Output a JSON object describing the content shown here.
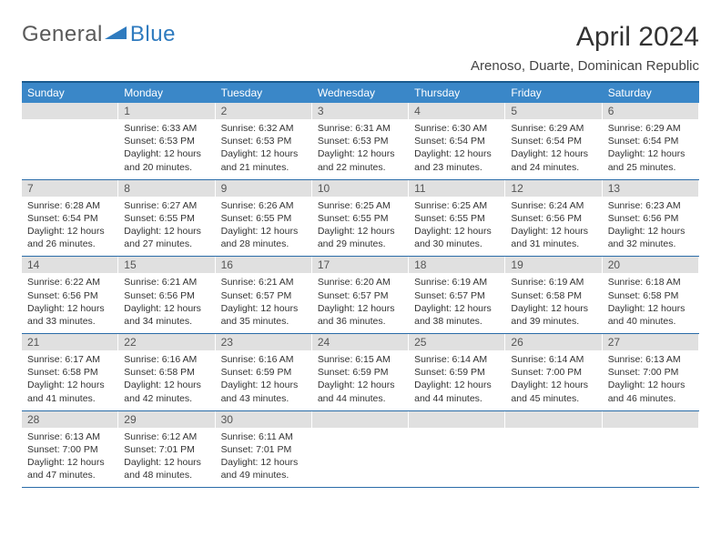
{
  "logo": {
    "text1": "General",
    "text2": "Blue",
    "accent_color": "#2f7bbf"
  },
  "title": "April 2024",
  "location": "Arenoso, Duarte, Dominican Republic",
  "header_bg": "#3a87c8",
  "border_color": "#1a5a8e",
  "row_border": "#2a6ca8",
  "daynum_bg": "#e0e0e0",
  "day_names": [
    "Sunday",
    "Monday",
    "Tuesday",
    "Wednesday",
    "Thursday",
    "Friday",
    "Saturday"
  ],
  "weeks": [
    [
      {
        "n": "",
        "sr": "",
        "ss": "",
        "dl": ""
      },
      {
        "n": "1",
        "sr": "6:33 AM",
        "ss": "6:53 PM",
        "dl": "12 hours and 20 minutes."
      },
      {
        "n": "2",
        "sr": "6:32 AM",
        "ss": "6:53 PM",
        "dl": "12 hours and 21 minutes."
      },
      {
        "n": "3",
        "sr": "6:31 AM",
        "ss": "6:53 PM",
        "dl": "12 hours and 22 minutes."
      },
      {
        "n": "4",
        "sr": "6:30 AM",
        "ss": "6:54 PM",
        "dl": "12 hours and 23 minutes."
      },
      {
        "n": "5",
        "sr": "6:29 AM",
        "ss": "6:54 PM",
        "dl": "12 hours and 24 minutes."
      },
      {
        "n": "6",
        "sr": "6:29 AM",
        "ss": "6:54 PM",
        "dl": "12 hours and 25 minutes."
      }
    ],
    [
      {
        "n": "7",
        "sr": "6:28 AM",
        "ss": "6:54 PM",
        "dl": "12 hours and 26 minutes."
      },
      {
        "n": "8",
        "sr": "6:27 AM",
        "ss": "6:55 PM",
        "dl": "12 hours and 27 minutes."
      },
      {
        "n": "9",
        "sr": "6:26 AM",
        "ss": "6:55 PM",
        "dl": "12 hours and 28 minutes."
      },
      {
        "n": "10",
        "sr": "6:25 AM",
        "ss": "6:55 PM",
        "dl": "12 hours and 29 minutes."
      },
      {
        "n": "11",
        "sr": "6:25 AM",
        "ss": "6:55 PM",
        "dl": "12 hours and 30 minutes."
      },
      {
        "n": "12",
        "sr": "6:24 AM",
        "ss": "6:56 PM",
        "dl": "12 hours and 31 minutes."
      },
      {
        "n": "13",
        "sr": "6:23 AM",
        "ss": "6:56 PM",
        "dl": "12 hours and 32 minutes."
      }
    ],
    [
      {
        "n": "14",
        "sr": "6:22 AM",
        "ss": "6:56 PM",
        "dl": "12 hours and 33 minutes."
      },
      {
        "n": "15",
        "sr": "6:21 AM",
        "ss": "6:56 PM",
        "dl": "12 hours and 34 minutes."
      },
      {
        "n": "16",
        "sr": "6:21 AM",
        "ss": "6:57 PM",
        "dl": "12 hours and 35 minutes."
      },
      {
        "n": "17",
        "sr": "6:20 AM",
        "ss": "6:57 PM",
        "dl": "12 hours and 36 minutes."
      },
      {
        "n": "18",
        "sr": "6:19 AM",
        "ss": "6:57 PM",
        "dl": "12 hours and 38 minutes."
      },
      {
        "n": "19",
        "sr": "6:19 AM",
        "ss": "6:58 PM",
        "dl": "12 hours and 39 minutes."
      },
      {
        "n": "20",
        "sr": "6:18 AM",
        "ss": "6:58 PM",
        "dl": "12 hours and 40 minutes."
      }
    ],
    [
      {
        "n": "21",
        "sr": "6:17 AM",
        "ss": "6:58 PM",
        "dl": "12 hours and 41 minutes."
      },
      {
        "n": "22",
        "sr": "6:16 AM",
        "ss": "6:58 PM",
        "dl": "12 hours and 42 minutes."
      },
      {
        "n": "23",
        "sr": "6:16 AM",
        "ss": "6:59 PM",
        "dl": "12 hours and 43 minutes."
      },
      {
        "n": "24",
        "sr": "6:15 AM",
        "ss": "6:59 PM",
        "dl": "12 hours and 44 minutes."
      },
      {
        "n": "25",
        "sr": "6:14 AM",
        "ss": "6:59 PM",
        "dl": "12 hours and 44 minutes."
      },
      {
        "n": "26",
        "sr": "6:14 AM",
        "ss": "7:00 PM",
        "dl": "12 hours and 45 minutes."
      },
      {
        "n": "27",
        "sr": "6:13 AM",
        "ss": "7:00 PM",
        "dl": "12 hours and 46 minutes."
      }
    ],
    [
      {
        "n": "28",
        "sr": "6:13 AM",
        "ss": "7:00 PM",
        "dl": "12 hours and 47 minutes."
      },
      {
        "n": "29",
        "sr": "6:12 AM",
        "ss": "7:01 PM",
        "dl": "12 hours and 48 minutes."
      },
      {
        "n": "30",
        "sr": "6:11 AM",
        "ss": "7:01 PM",
        "dl": "12 hours and 49 minutes."
      },
      {
        "n": "",
        "sr": "",
        "ss": "",
        "dl": ""
      },
      {
        "n": "",
        "sr": "",
        "ss": "",
        "dl": ""
      },
      {
        "n": "",
        "sr": "",
        "ss": "",
        "dl": ""
      },
      {
        "n": "",
        "sr": "",
        "ss": "",
        "dl": ""
      }
    ]
  ]
}
